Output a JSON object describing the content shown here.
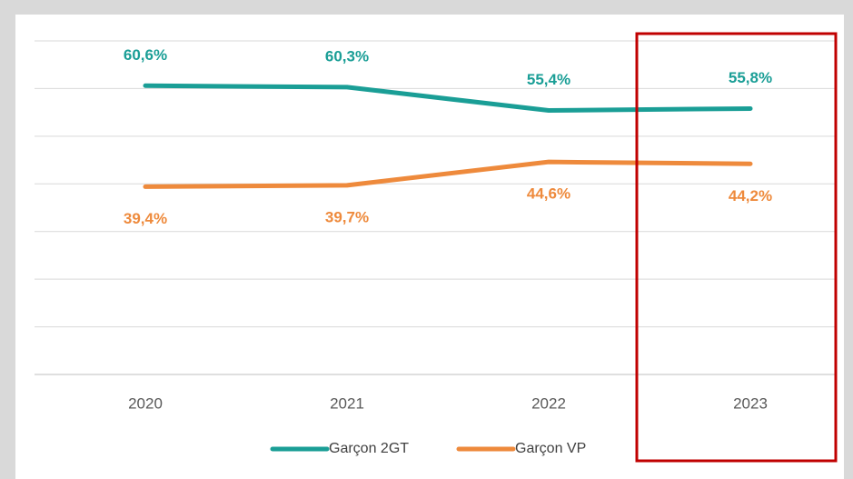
{
  "chart_data": {
    "type": "line",
    "categories": [
      "2020",
      "2021",
      "2022",
      "2023"
    ],
    "series": [
      {
        "name": "Garçon 2GT",
        "color": "#1a9e96",
        "values": [
          60.6,
          60.3,
          55.4,
          55.8
        ],
        "value_labels": [
          "60,6%",
          "60,3%",
          "55,4%",
          "55,8%"
        ]
      },
      {
        "name": "Garçon VP",
        "color": "#ee8a3c",
        "values": [
          39.4,
          39.7,
          44.6,
          44.2
        ],
        "value_labels": [
          "39,4%",
          "39,7%",
          "44,6%",
          "44,2%"
        ]
      }
    ],
    "ylim": [
      0,
      70
    ],
    "yticks": [
      0,
      10,
      20,
      30,
      40,
      50,
      60,
      70
    ],
    "grid": true
  }
}
